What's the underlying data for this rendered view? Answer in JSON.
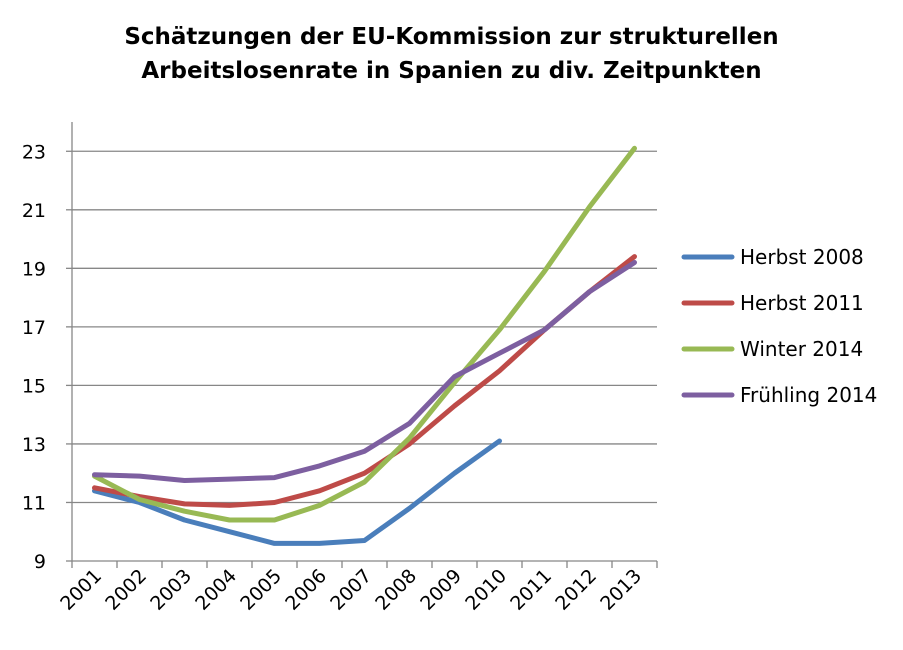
{
  "chart_data": {
    "type": "line",
    "title_lines": [
      "Schätzungen der EU-Kommission zur strukturellen",
      "Arbeitslosenrate in Spanien zu div. Zeitpunkten"
    ],
    "xlabel": "",
    "ylabel": "",
    "categories": [
      "2001",
      "2002",
      "2003",
      "2004",
      "2005",
      "2006",
      "2007",
      "2008",
      "2009",
      "2010",
      "2011",
      "2012",
      "2013"
    ],
    "ylim": [
      9,
      24
    ],
    "yticks": [
      "9",
      "11",
      "13",
      "15",
      "17",
      "19",
      "21",
      "23"
    ],
    "grid": "horizontal",
    "legend_position": "right",
    "series": [
      {
        "name": "Herbst 2008",
        "color": "#4a7ebb",
        "values": [
          11.4,
          11.0,
          10.4,
          10.0,
          9.6,
          9.6,
          9.7,
          10.8,
          12.0,
          13.1,
          null,
          null,
          null
        ]
      },
      {
        "name": "Herbst 2011",
        "color": "#be4b48",
        "values": [
          11.5,
          11.2,
          10.95,
          10.9,
          11.0,
          11.4,
          12.0,
          13.0,
          14.3,
          15.5,
          16.9,
          18.2,
          19.4
        ]
      },
      {
        "name": "Winter 2014",
        "color": "#98b954",
        "values": [
          11.9,
          11.1,
          10.7,
          10.4,
          10.4,
          10.9,
          11.7,
          13.2,
          15.1,
          16.9,
          18.9,
          21.1,
          23.1
        ]
      },
      {
        "name": "Frühling 2014",
        "color": "#7d5fa0",
        "values": [
          11.95,
          11.9,
          11.75,
          11.8,
          11.85,
          12.25,
          12.75,
          13.7,
          15.3,
          16.1,
          16.9,
          18.2,
          19.2
        ]
      }
    ]
  }
}
